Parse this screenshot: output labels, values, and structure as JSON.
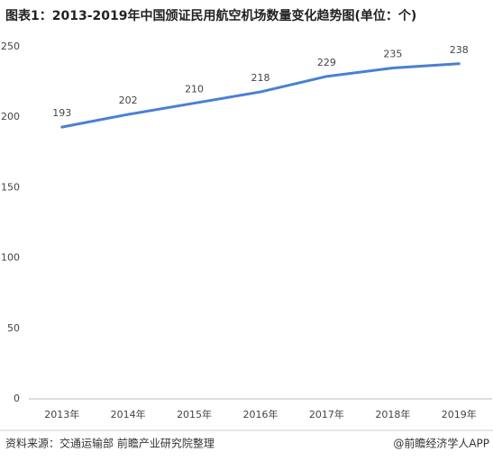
{
  "chart_data": {
    "type": "line",
    "title": "图表1：2013-2019年中国颁证民用航空机场数量变化趋势图(单位：个)",
    "categories": [
      "2013年",
      "2014年",
      "2015年",
      "2016年",
      "2017年",
      "2018年",
      "2019年"
    ],
    "values": [
      193,
      202,
      210,
      218,
      229,
      235,
      238
    ],
    "color": "#4a7fd4",
    "ylim": [
      0,
      250
    ],
    "yticks": [
      0,
      50,
      100,
      150,
      200,
      250
    ],
    "grid": false,
    "data_labels": true
  },
  "footer": {
    "source": "资料来源：交通运输部 前瞻产业研究院整理",
    "credit": "@前瞻经济学人APP"
  }
}
